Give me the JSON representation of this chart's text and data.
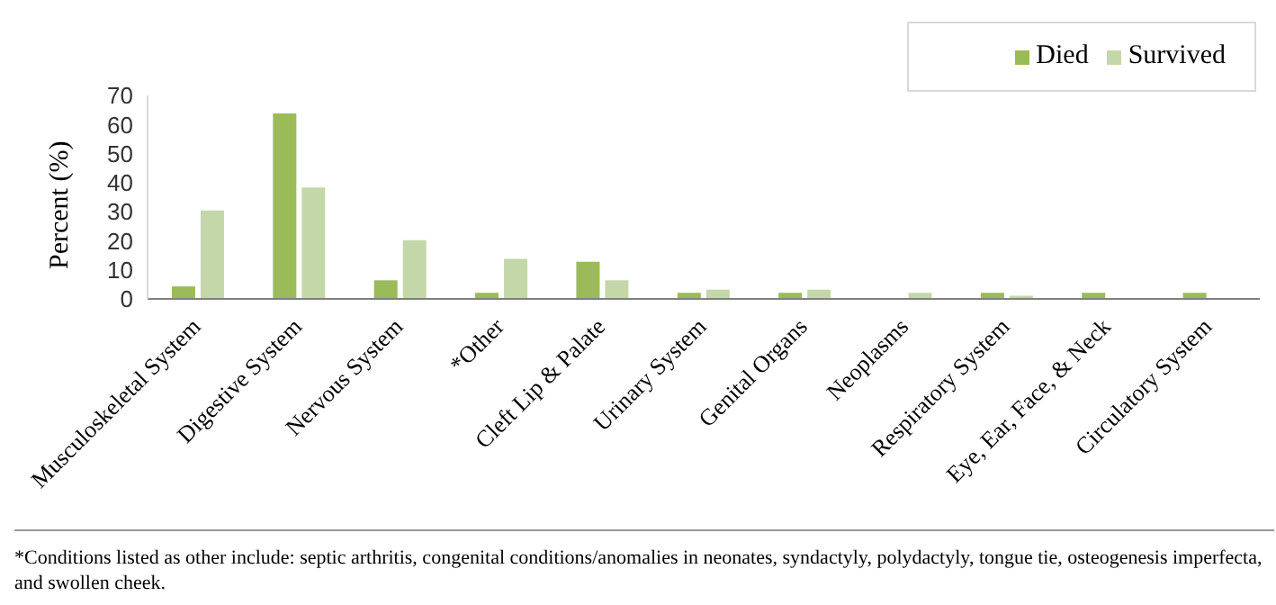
{
  "chart_data": {
    "type": "bar",
    "ylabel": "Percent (%)",
    "categories": [
      "Musculoskeletal System",
      "Digestive System",
      "Nervous System",
      "*Other",
      "Cleft Lip & Palate",
      "Urinary System",
      "Genital Organs",
      "Neoplasms",
      "Respiratory System",
      "Eye, Ear, Face, & Neck",
      "Circulatory System"
    ],
    "series": [
      {
        "name": "Died",
        "color": "#9bbb59",
        "values": [
          4.3,
          63.8,
          6.4,
          2.1,
          12.8,
          2.1,
          2.1,
          0,
          2.1,
          2.1,
          2.1
        ]
      },
      {
        "name": "Survived",
        "color": "#c4d7a9",
        "values": [
          30.4,
          38.3,
          20.2,
          13.8,
          6.4,
          3.2,
          3.2,
          2.1,
          1.1,
          null,
          null
        ]
      }
    ],
    "ylim": [
      0,
      70
    ],
    "yticks": [
      0,
      10,
      20,
      30,
      40,
      50,
      60,
      70
    ],
    "grid": false,
    "legend": "top right",
    "annotations": [
      "*Conditions listed as other include: septic arthritis, congenital conditions/anomalies in neonates, syndactyly, polydactyly, tongue tie, osteogenesis imperfecta, and swollen cheek."
    ]
  }
}
